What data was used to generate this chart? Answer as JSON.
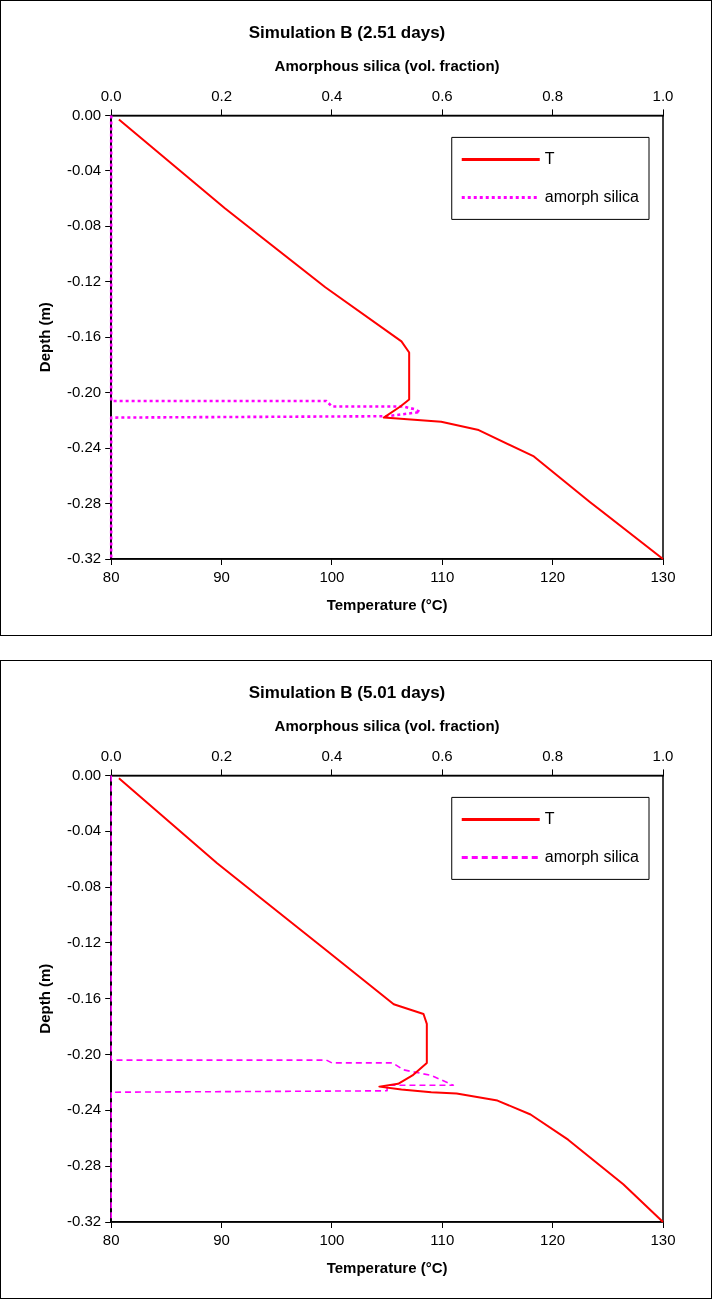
{
  "chart_data": [
    {
      "type": "line",
      "title": "Simulation B (2.51 days)",
      "xlabel": "Temperature (°C)",
      "x2label": "Amorphous silica (vol. fraction)",
      "ylabel": "Depth (m)",
      "xlim": [
        80,
        130
      ],
      "xticks": [
        80,
        90,
        100,
        110,
        120,
        130
      ],
      "x2lim": [
        0,
        1
      ],
      "x2ticks": [
        {
          "value": 0,
          "label": "0.0"
        },
        {
          "value": 0.2,
          "label": "0.2"
        },
        {
          "value": 0.4,
          "label": "0.4"
        },
        {
          "value": 0.6,
          "label": "0.6"
        },
        {
          "value": 0.8,
          "label": "0.8"
        },
        {
          "value": 1,
          "label": "1.0"
        }
      ],
      "ylim": [
        -0.32,
        0
      ],
      "yticks": [
        {
          "value": 0,
          "label": "0.00"
        },
        -0.04,
        -0.08,
        -0.12,
        -0.16,
        {
          "value": -0.2,
          "label": "-0.20"
        },
        -0.24,
        -0.28,
        {
          "value": -0.32,
          "label": "-0.32"
        }
      ],
      "grid": false,
      "legend": "top right",
      "marker": "none",
      "series": [
        {
          "name": "T",
          "color": "#ff0000",
          "line_style": "solid",
          "x": [
            80.7,
            90.3,
            99.4,
            106.3,
            107.0,
            107.0,
            106.2,
            104.7,
            109.9,
            113.3,
            118.3,
            123.4,
            130
          ],
          "values": [
            -0.003,
            -0.067,
            -0.124,
            -0.163,
            -0.171,
            -0.205,
            -0.21,
            -0.218,
            -0.221,
            -0.227,
            -0.246,
            -0.279,
            -0.32
          ]
        },
        {
          "name": "amorph silica",
          "color": "#ff00ff",
          "axis": "x2",
          "line_style": "dotted",
          "x": [
            0,
            0,
            0.39,
            0.4,
            0.53,
            0.55,
            0.56,
            0.5,
            0,
            0
          ],
          "values": [
            0,
            -0.206,
            -0.206,
            -0.21,
            -0.21,
            -0.212,
            -0.214,
            -0.217,
            -0.218,
            -0.32
          ]
        }
      ]
    },
    {
      "type": "line",
      "title": "Simulation B (5.01 days)",
      "xlabel": "Temperature (°C)",
      "x2label": "Amorphous silica (vol. fraction)",
      "ylabel": "Depth (m)",
      "xlim": [
        80,
        130
      ],
      "xticks": [
        80,
        90,
        100,
        110,
        120,
        130
      ],
      "x2lim": [
        0,
        1
      ],
      "x2ticks": [
        {
          "value": 0,
          "label": "0.0"
        },
        {
          "value": 0.2,
          "label": "0.2"
        },
        {
          "value": 0.4,
          "label": "0.4"
        },
        {
          "value": 0.6,
          "label": "0.6"
        },
        {
          "value": 0.8,
          "label": "0.8"
        },
        {
          "value": 1,
          "label": "1.0"
        }
      ],
      "ylim": [
        -0.32,
        0
      ],
      "yticks": [
        {
          "value": 0,
          "label": "0.00"
        },
        -0.04,
        -0.08,
        -0.12,
        -0.16,
        {
          "value": -0.2,
          "label": "-0.20"
        },
        -0.24,
        -0.28,
        {
          "value": -0.32,
          "label": "-0.32"
        }
      ],
      "grid": false,
      "legend": "top right",
      "marker": "none",
      "series": [
        {
          "name": "T",
          "color": "#ff0000",
          "line_style": "solid",
          "x": [
            80.7,
            89.6,
            99.6,
            105.6,
            108.3,
            108.6,
            108.6,
            107.3,
            106.0,
            104.3,
            106.3,
            109.0,
            111.3,
            115.0,
            118.0,
            121.4,
            126.4,
            130
          ],
          "values": [
            -0.002,
            -0.063,
            -0.126,
            -0.164,
            -0.171,
            -0.178,
            -0.206,
            -0.215,
            -0.221,
            -0.223,
            -0.225,
            -0.227,
            -0.228,
            -0.233,
            -0.243,
            -0.261,
            -0.293,
            -0.32
          ]
        },
        {
          "name": "amorph silica",
          "color": "#ff00ff",
          "axis": "x2",
          "line_style": "dashed",
          "x": [
            0,
            0,
            0.39,
            0.4,
            0.51,
            0.53,
            0.58,
            0.62,
            0.5,
            0.5,
            0,
            0
          ],
          "values": [
            0,
            -0.204,
            -0.204,
            -0.206,
            -0.206,
            -0.211,
            -0.215,
            -0.222,
            -0.222,
            -0.226,
            -0.227,
            -0.32
          ]
        }
      ]
    }
  ]
}
